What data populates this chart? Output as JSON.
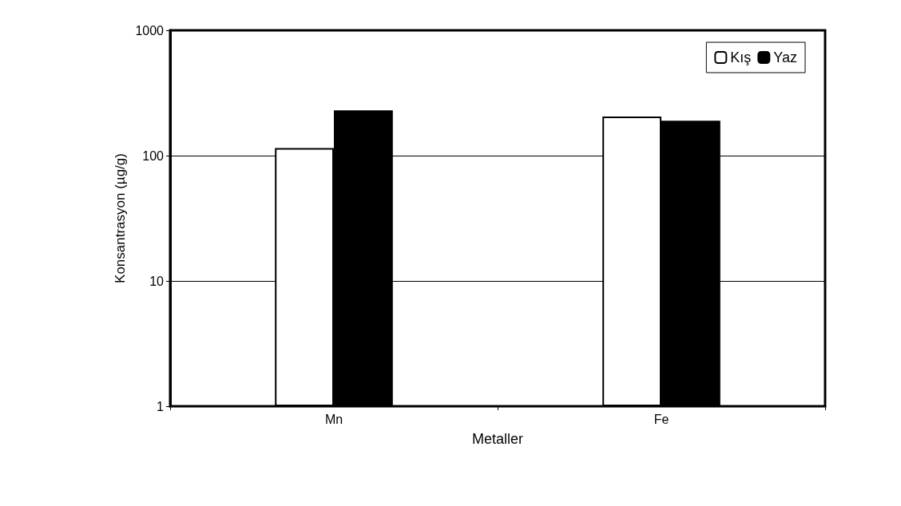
{
  "chart_data": {
    "type": "bar",
    "xlabel": "Metaller",
    "ylabel": "Konsantrasyon (µg/g)",
    "categories": [
      "Mn",
      "Fe"
    ],
    "series": [
      {
        "name": "Kış",
        "color": "#ffffff",
        "values": [
          115,
          205
        ]
      },
      {
        "name": "Yaz",
        "color": "#000000",
        "values": [
          230,
          190
        ]
      }
    ],
    "log": "y",
    "ylim": [
      1,
      1000
    ],
    "yticks": [
      1,
      10,
      100,
      1000
    ],
    "grid": "y",
    "legend": "top right"
  }
}
